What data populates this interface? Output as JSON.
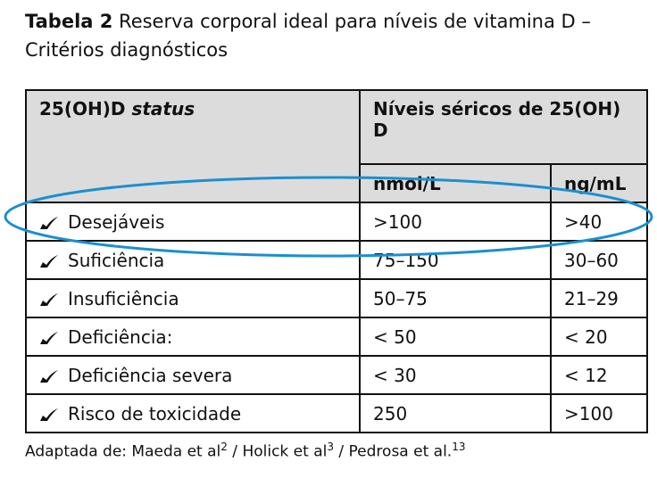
{
  "title": {
    "label": "Tabela 2",
    "text": "Reserva corporal ideal para níveis de vitamina D – Critérios diagnósticos"
  },
  "table": {
    "header": {
      "col1": {
        "main": "25(OH)D",
        "italic": "status"
      },
      "col2": "Níveis séricos de 25(OH) D",
      "unit1": "nmol/L",
      "unit2": "ng/mL"
    },
    "rows": [
      [
        "Desejáveis",
        ">100",
        ">40"
      ],
      [
        "Suficiência",
        "75–150",
        "30–60"
      ],
      [
        "Insuficiência",
        "50–75",
        "21–29"
      ],
      [
        "Deficiência:",
        "< 50",
        "< 20"
      ],
      [
        "Deficiência severa",
        "< 30",
        "< 12"
      ],
      [
        "Risco de toxicidade",
        "250",
        ">100"
      ]
    ]
  },
  "footer": {
    "prefix": "Adaptada de:",
    "separator": "/",
    "refs": [
      {
        "text": "Maeda et al",
        "sup": "2"
      },
      {
        "text": "Holick et al",
        "sup": "3"
      },
      {
        "text": "Pedrosa et al.",
        "sup": "13"
      }
    ]
  }
}
